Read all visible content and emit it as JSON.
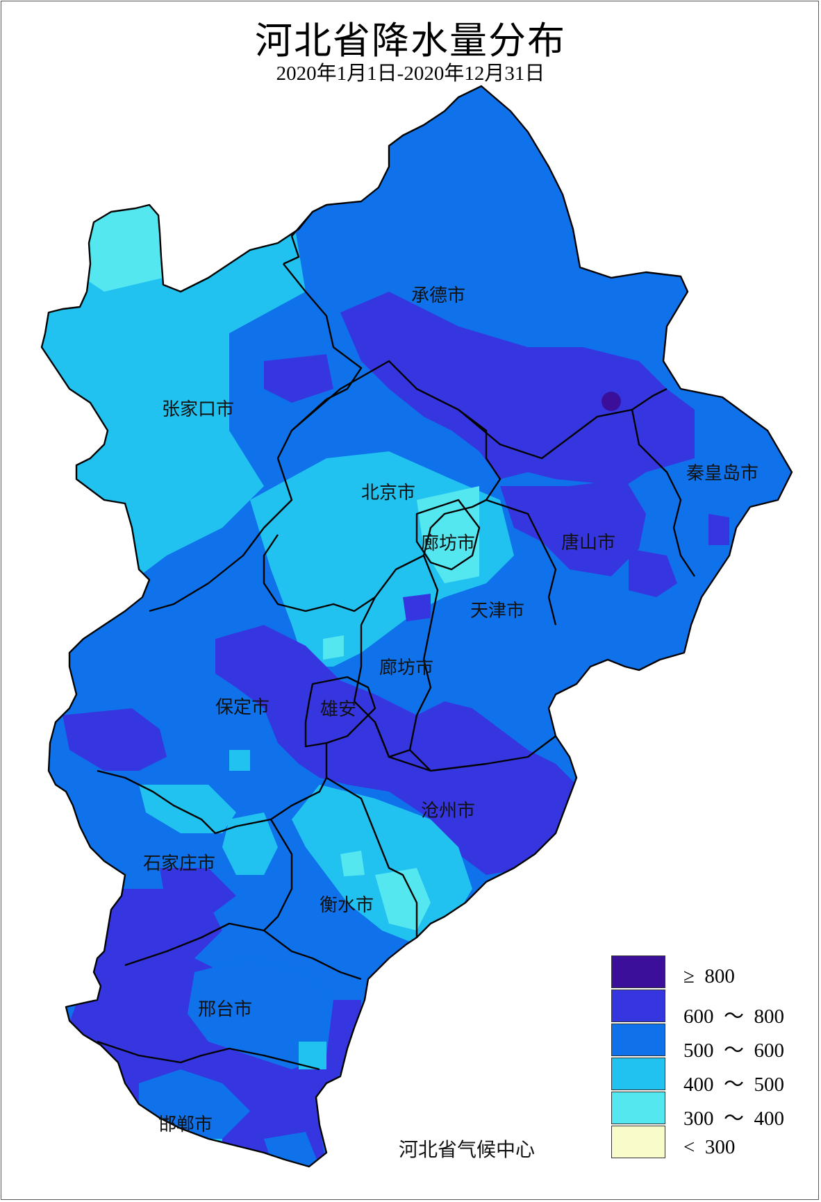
{
  "title": "河北省降水量分布",
  "subtitle": "2020年1月1日-2020年12月31日",
  "credit": "河北省气候中心",
  "colors": {
    "c800": "#3b0f9a",
    "c600": "#3636e0",
    "c500": "#0f72ea",
    "c400": "#22c2f0",
    "c300": "#55e7ef",
    "cless": "#fafbcb",
    "boundary": "#000000"
  },
  "cities": {
    "chengde": "承德市",
    "zhangjiakou": "张家口市",
    "qinhuangdao": "秦皇岛市",
    "beijing": "北京市",
    "langfang_north": "廊坊市",
    "tangshan": "唐山市",
    "tianjin": "天津市",
    "langfang": "廊坊市",
    "baoding": "保定市",
    "xiongan": "雄安",
    "cangzhou": "沧州市",
    "shijiazhuang": "石家庄市",
    "hengshui": "衡水市",
    "xingtai": "邢台市",
    "handan": "邯郸市"
  },
  "legend": [
    {
      "label": "≥  800",
      "color": "#3b0f9a"
    },
    {
      "label": "600  ～  800",
      "color": "#3636e0"
    },
    {
      "label": "500  ～  600",
      "color": "#0f72ea"
    },
    {
      "label": "400  ～  500",
      "color": "#22c2f0"
    },
    {
      "label": "300  ～  400",
      "color": "#55e7ef"
    },
    {
      "label": "<  300",
      "color": "#fafbcb"
    }
  ]
}
